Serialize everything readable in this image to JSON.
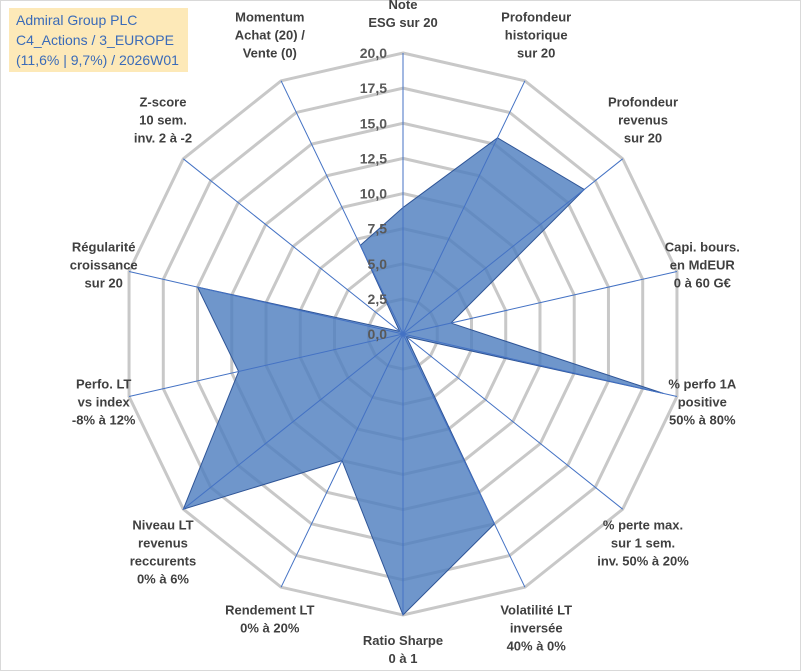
{
  "title_box": {
    "line1": "Admiral Group PLC",
    "line2": "C4_Actions / 3_EUROPE",
    "line3": "(11,6% | 9,7%) / 2026W01"
  },
  "chart_data": {
    "type": "radar",
    "rmin": 0,
    "rmax": 20,
    "ticks": [
      "0,0",
      "2,5",
      "5,0",
      "7,5",
      "10,0",
      "12,5",
      "15,0",
      "17,5",
      "20,0"
    ],
    "tick_values": [
      0,
      2.5,
      5,
      7.5,
      10,
      12.5,
      15,
      17.5,
      20
    ],
    "axes": [
      {
        "label": [
          "Note",
          "ESG sur 20"
        ],
        "value": 9.0
      },
      {
        "label": [
          "Profondeur",
          "historique",
          "sur 20"
        ],
        "value": 15.5
      },
      {
        "label": [
          "Profondeur",
          "revenus",
          "sur 20"
        ],
        "value": 16.5
      },
      {
        "label": [
          "Capi. bours.",
          "en MdEUR",
          "0 à 60 G€"
        ],
        "value": 3.5
      },
      {
        "label": [
          "% perfo 1A",
          "positive",
          "50% à 80%"
        ],
        "value": 19.0
      },
      {
        "label": [
          "% perte max.",
          "sur 1 sem.",
          "inv. 50% à 20%"
        ],
        "value": 0.3
      },
      {
        "label": [
          "Volatilité LT",
          "inversée",
          "40% à 0%"
        ],
        "value": 15.0
      },
      {
        "label": [
          "Ratio Sharpe",
          "0 à 1"
        ],
        "value": 20.0
      },
      {
        "label": [
          "Rendement LT",
          "0% à 20%"
        ],
        "value": 10.0
      },
      {
        "label": [
          "Niveau LT",
          "revenus",
          "reccurents",
          "0% à 6%"
        ],
        "value": 20.0
      },
      {
        "label": [
          "Perfo. LT",
          "vs index",
          "-8% à 12%"
        ],
        "value": 12.0
      },
      {
        "label": [
          "Régularité",
          "croissance",
          "sur 20"
        ],
        "value": 15.0
      },
      {
        "label": [
          "Z-score",
          "10 sem.",
          "inv. 2 à -2"
        ],
        "value": 0.3
      },
      {
        "label": [
          "Momentum",
          "Achat (20) /",
          "Vente (0)"
        ],
        "value": 7.0
      }
    ],
    "series": [
      {
        "name": "Admiral Group PLC"
      }
    ],
    "colors": {
      "fill": "#4f7fbf",
      "stroke": "#2f5597",
      "grid": "#c8c8c8",
      "spoke": "#4472c4"
    }
  }
}
